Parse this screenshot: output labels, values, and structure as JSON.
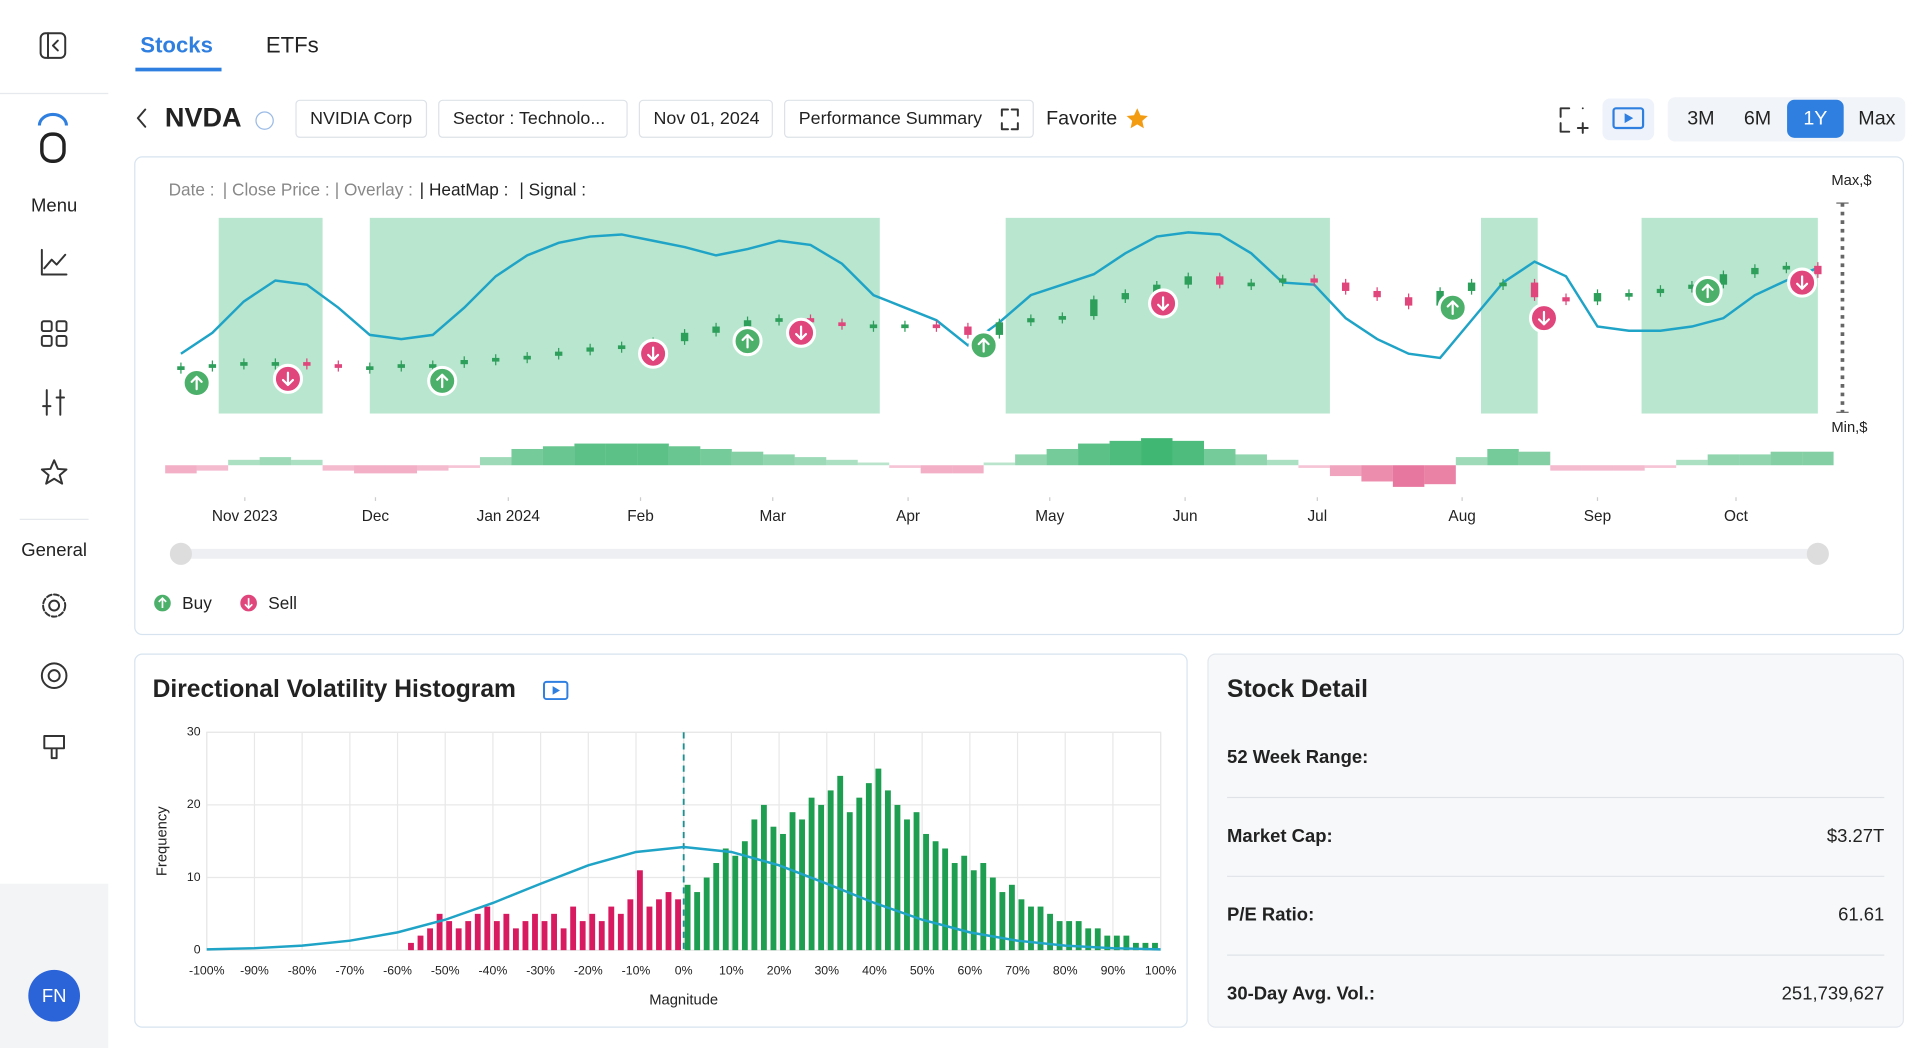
{
  "sidebar": {
    "menu_label": "Menu",
    "general_label": "General",
    "avatar": "FN"
  },
  "tabs": [
    "Stocks",
    "ETFs"
  ],
  "header": {
    "ticker": "NVDA",
    "chips": [
      "NVIDIA Corp",
      "Sector : Technolo...",
      "Nov 01, 2024",
      "Performance Summary"
    ],
    "favorite": "Favorite",
    "ranges": [
      "3M",
      "6M",
      "1Y",
      "Max"
    ],
    "active_range": "1Y"
  },
  "chart_data": [
    {
      "type": "line",
      "info_labels": [
        "Date :",
        "| Close Price :",
        "| Overlay :",
        "| HeatMap :",
        "| Signal :"
      ],
      "xlim": [
        0,
        52
      ],
      "xticks": [
        {
          "value": 2.03,
          "label": "Nov 2023"
        },
        {
          "value": 6.18,
          "label": "Dec"
        },
        {
          "value": 10.4,
          "label": "Jan 2024"
        },
        {
          "value": 14.6,
          "label": "Feb"
        },
        {
          "value": 18.8,
          "label": "Mar"
        },
        {
          "value": 23.1,
          "label": "Apr"
        },
        {
          "value": 27.6,
          "label": "May"
        },
        {
          "value": 31.9,
          "label": "Jun"
        },
        {
          "value": 36.1,
          "label": "Jul"
        },
        {
          "value": 40.7,
          "label": "Aug"
        },
        {
          "value": 45.0,
          "label": "Sep"
        },
        {
          "value": 49.4,
          "label": "Oct"
        }
      ],
      "ylim": [
        0,
        1
      ],
      "yticks": [
        {
          "value": 0,
          "label": "Min,$"
        },
        {
          "value": 1,
          "label": "Max,$"
        }
      ],
      "price": {
        "up_color": "#2e9e5b",
        "down_color": "#e0457b",
        "values": [
          0.22,
          0.23,
          0.24,
          0.24,
          0.23,
          0.22,
          0.22,
          0.23,
          0.23,
          0.25,
          0.26,
          0.27,
          0.29,
          0.31,
          0.32,
          0.34,
          0.38,
          0.41,
          0.44,
          0.45,
          0.43,
          0.42,
          0.42,
          0.42,
          0.41,
          0.37,
          0.43,
          0.45,
          0.46,
          0.54,
          0.57,
          0.61,
          0.65,
          0.61,
          0.62,
          0.64,
          0.62,
          0.58,
          0.55,
          0.51,
          0.58,
          0.62,
          0.62,
          0.55,
          0.53,
          0.57,
          0.57,
          0.59,
          0.61,
          0.66,
          0.69,
          0.7,
          0.66
        ]
      },
      "overlay": {
        "color": "#1fa3c6",
        "values": [
          0.28,
          0.38,
          0.53,
          0.63,
          0.61,
          0.5,
          0.37,
          0.35,
          0.37,
          0.5,
          0.65,
          0.75,
          0.81,
          0.84,
          0.85,
          0.82,
          0.79,
          0.75,
          0.78,
          0.82,
          0.8,
          0.71,
          0.56,
          0.5,
          0.44,
          0.32,
          0.43,
          0.56,
          0.61,
          0.66,
          0.76,
          0.84,
          0.86,
          0.85,
          0.76,
          0.62,
          0.61,
          0.45,
          0.35,
          0.28,
          0.26,
          0.44,
          0.62,
          0.72,
          0.65,
          0.41,
          0.39,
          0.39,
          0.41,
          0.45,
          0.56,
          0.63,
          0.69
        ]
      },
      "heatmap": {
        "up_color": "#1faa5a",
        "down_color": "#e0457b",
        "values": [
          -0.3,
          -0.2,
          0.2,
          0.3,
          0.2,
          -0.2,
          -0.3,
          -0.3,
          -0.2,
          -0.1,
          0.3,
          0.6,
          0.7,
          0.8,
          0.8,
          0.8,
          0.7,
          0.6,
          0.5,
          0.4,
          0.3,
          0.2,
          0.1,
          -0.1,
          -0.3,
          -0.3,
          0.1,
          0.4,
          0.6,
          0.8,
          0.9,
          1,
          0.9,
          0.6,
          0.4,
          0.2,
          -0.1,
          -0.4,
          -0.6,
          -0.8,
          -0.7,
          0.3,
          0.6,
          0.5,
          -0.2,
          -0.2,
          -0.2,
          -0.1,
          0.2,
          0.4,
          0.4,
          0.5,
          0.5
        ]
      },
      "zones": {
        "color": "#b8e6cf",
        "ranges": [
          [
            1.2,
            4.5
          ],
          [
            6,
            22.2
          ],
          [
            26.2,
            36.5
          ],
          [
            41.3,
            43.1
          ],
          [
            46.4,
            52
          ]
        ]
      },
      "signal_types": [
        {
          "label": "Buy",
          "color": "#4caf6a"
        },
        {
          "label": "Sell",
          "color": "#e0457b"
        }
      ],
      "signals": [
        {
          "kind": 0,
          "x": 0.5,
          "y": 0.14
        },
        {
          "kind": 1,
          "x": 3.4,
          "y": 0.16
        },
        {
          "kind": 0,
          "x": 8.3,
          "y": 0.15
        },
        {
          "kind": 1,
          "x": 15,
          "y": 0.28
        },
        {
          "kind": 0,
          "x": 18,
          "y": 0.34
        },
        {
          "kind": 1,
          "x": 19.7,
          "y": 0.38
        },
        {
          "kind": 0,
          "x": 25.5,
          "y": 0.32
        },
        {
          "kind": 1,
          "x": 31.2,
          "y": 0.52
        },
        {
          "kind": 0,
          "x": 40.4,
          "y": 0.5
        },
        {
          "kind": 1,
          "x": 43.3,
          "y": 0.45
        },
        {
          "kind": 0,
          "x": 48.5,
          "y": 0.58
        },
        {
          "kind": 1,
          "x": 51.5,
          "y": 0.62
        }
      ]
    },
    {
      "type": "histogram",
      "title": "Directional Volatility Histogram",
      "xlabel": "Magnitude",
      "ylabel": "Frequency",
      "bins": [
        -60,
        -58,
        -56,
        -54,
        -52,
        -50,
        -48,
        -46,
        -44,
        -42,
        -40,
        -38,
        -36,
        -34,
        -32,
        -30,
        -28,
        -26,
        -24,
        -22,
        -20,
        -18,
        -16,
        -14,
        -12,
        -10,
        -8,
        -6,
        -4,
        -2,
        0,
        2,
        4,
        6,
        8,
        10,
        12,
        14,
        16,
        18,
        20,
        22,
        24,
        26,
        28,
        30,
        32,
        34,
        36,
        38,
        40,
        42,
        44,
        46,
        48,
        50,
        52,
        54,
        56,
        58,
        60,
        62,
        64,
        66,
        68,
        70,
        72,
        74,
        76,
        78,
        80,
        82,
        84,
        86,
        88,
        90,
        92,
        94,
        96,
        98,
        100
      ],
      "counts": [
        0,
        1,
        2,
        3,
        5,
        4,
        3,
        4,
        5,
        6,
        4,
        5,
        3,
        4,
        5,
        4,
        5,
        3,
        6,
        4,
        5,
        4,
        6,
        5,
        7,
        11,
        6,
        7,
        8,
        7,
        9,
        8,
        10,
        12,
        14,
        13,
        15,
        18,
        20,
        17,
        16,
        19,
        18,
        21,
        20,
        22,
        24,
        19,
        21,
        23,
        25,
        22,
        20,
        18,
        19,
        16,
        15,
        14,
        12,
        13,
        11,
        12,
        10,
        8,
        9,
        7,
        6,
        6,
        5,
        4,
        4,
        4,
        3,
        3,
        2,
        2,
        2,
        1,
        1,
        1
      ],
      "colors": [
        "#d81b60",
        "#1e9e50"
      ],
      "curve": {
        "color": "#1fa3c6",
        "x": [
          -100,
          -90,
          -80,
          -70,
          -60,
          -50,
          -40,
          -30,
          -20,
          -10,
          0,
          10,
          20,
          30,
          40,
          50,
          60,
          70,
          80,
          90,
          100
        ],
        "values": [
          0.11,
          0.27,
          0.62,
          1.3,
          2.45,
          4.19,
          6.5,
          9.15,
          11.68,
          13.52,
          14.2,
          13.52,
          11.68,
          9.15,
          6.5,
          4.19,
          2.45,
          1.3,
          0.62,
          0.27,
          0.11
        ]
      },
      "xlim": [
        -100,
        100
      ],
      "xticks": [
        {
          "value": -100,
          "label": "-100%"
        },
        {
          "value": -90,
          "label": "-90%"
        },
        {
          "value": -80,
          "label": "-80%"
        },
        {
          "value": -70,
          "label": "-70%"
        },
        {
          "value": -60,
          "label": "-60%"
        },
        {
          "value": -50,
          "label": "-50%"
        },
        {
          "value": -40,
          "label": "-40%"
        },
        {
          "value": -30,
          "label": "-30%"
        },
        {
          "value": -20,
          "label": "-20%"
        },
        {
          "value": -10,
          "label": "-10%"
        },
        {
          "value": 0,
          "label": "0%"
        },
        {
          "value": 10,
          "label": "10%"
        },
        {
          "value": 20,
          "label": "20%"
        },
        {
          "value": 30,
          "label": "30%"
        },
        {
          "value": 40,
          "label": "40%"
        },
        {
          "value": 50,
          "label": "50%"
        },
        {
          "value": 60,
          "label": "60%"
        },
        {
          "value": 70,
          "label": "70%"
        },
        {
          "value": 80,
          "label": "80%"
        },
        {
          "value": 90,
          "label": "90%"
        },
        {
          "value": 100,
          "label": "100%"
        }
      ],
      "ylim": [
        0,
        30
      ],
      "yticks": [
        0,
        10,
        20,
        30
      ],
      "grid": true
    }
  ],
  "stock_detail": {
    "title": "Stock Detail",
    "rows": [
      {
        "label": "52 Week Range:"
      },
      {
        "label": "Market Cap:",
        "value": "$3.27T"
      },
      {
        "label": "P/E Ratio:",
        "value": "61.61"
      },
      {
        "label": "30-Day Avg. Vol.:",
        "value": "251,739,627"
      }
    ]
  }
}
